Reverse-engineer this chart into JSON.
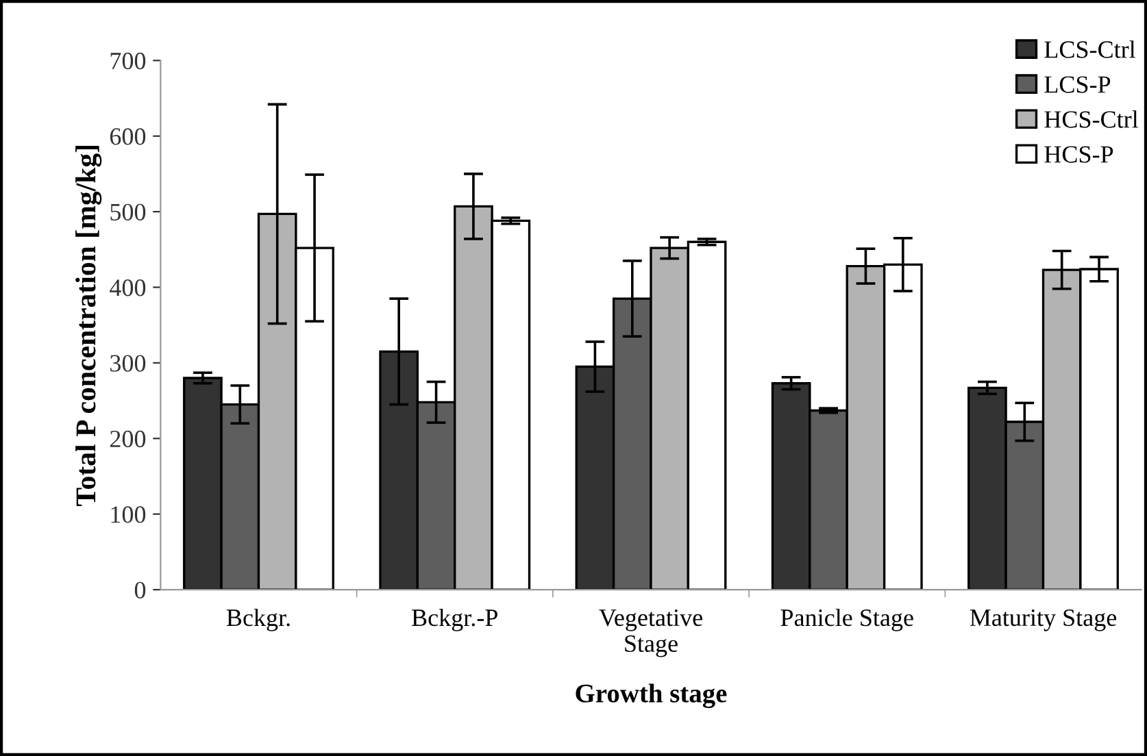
{
  "chart_data": {
    "type": "bar",
    "xlabel": "Growth stage",
    "ylabel": "Total P concentration [mg/kg]",
    "categories": [
      "Bckgr.",
      "Bckgr.-P",
      "Vegetative\nStage",
      "Panicle Stage",
      "Maturity Stage"
    ],
    "series": [
      {
        "name": "LCS-Ctrl",
        "color": "#333333",
        "values": [
          280,
          315,
          295,
          273,
          267
        ],
        "errors": [
          7,
          70,
          33,
          8,
          8
        ]
      },
      {
        "name": "LCS-P",
        "color": "#5e5e5e",
        "values": [
          245,
          248,
          385,
          237,
          222
        ],
        "errors": [
          25,
          27,
          50,
          3,
          25
        ]
      },
      {
        "name": "HCS-Ctrl",
        "color": "#b3b3b3",
        "values": [
          497,
          507,
          452,
          428,
          423
        ],
        "errors": [
          145,
          43,
          14,
          23,
          25
        ]
      },
      {
        "name": "HCS-P",
        "color": "#ffffff",
        "values": [
          452,
          488,
          460,
          430,
          424
        ],
        "errors": [
          97,
          4,
          4,
          35,
          16
        ]
      }
    ],
    "ylim": [
      0,
      700
    ],
    "yticks": [
      0,
      100,
      200,
      300,
      400,
      500,
      600,
      700
    ],
    "grid": false,
    "legend": "top right"
  }
}
